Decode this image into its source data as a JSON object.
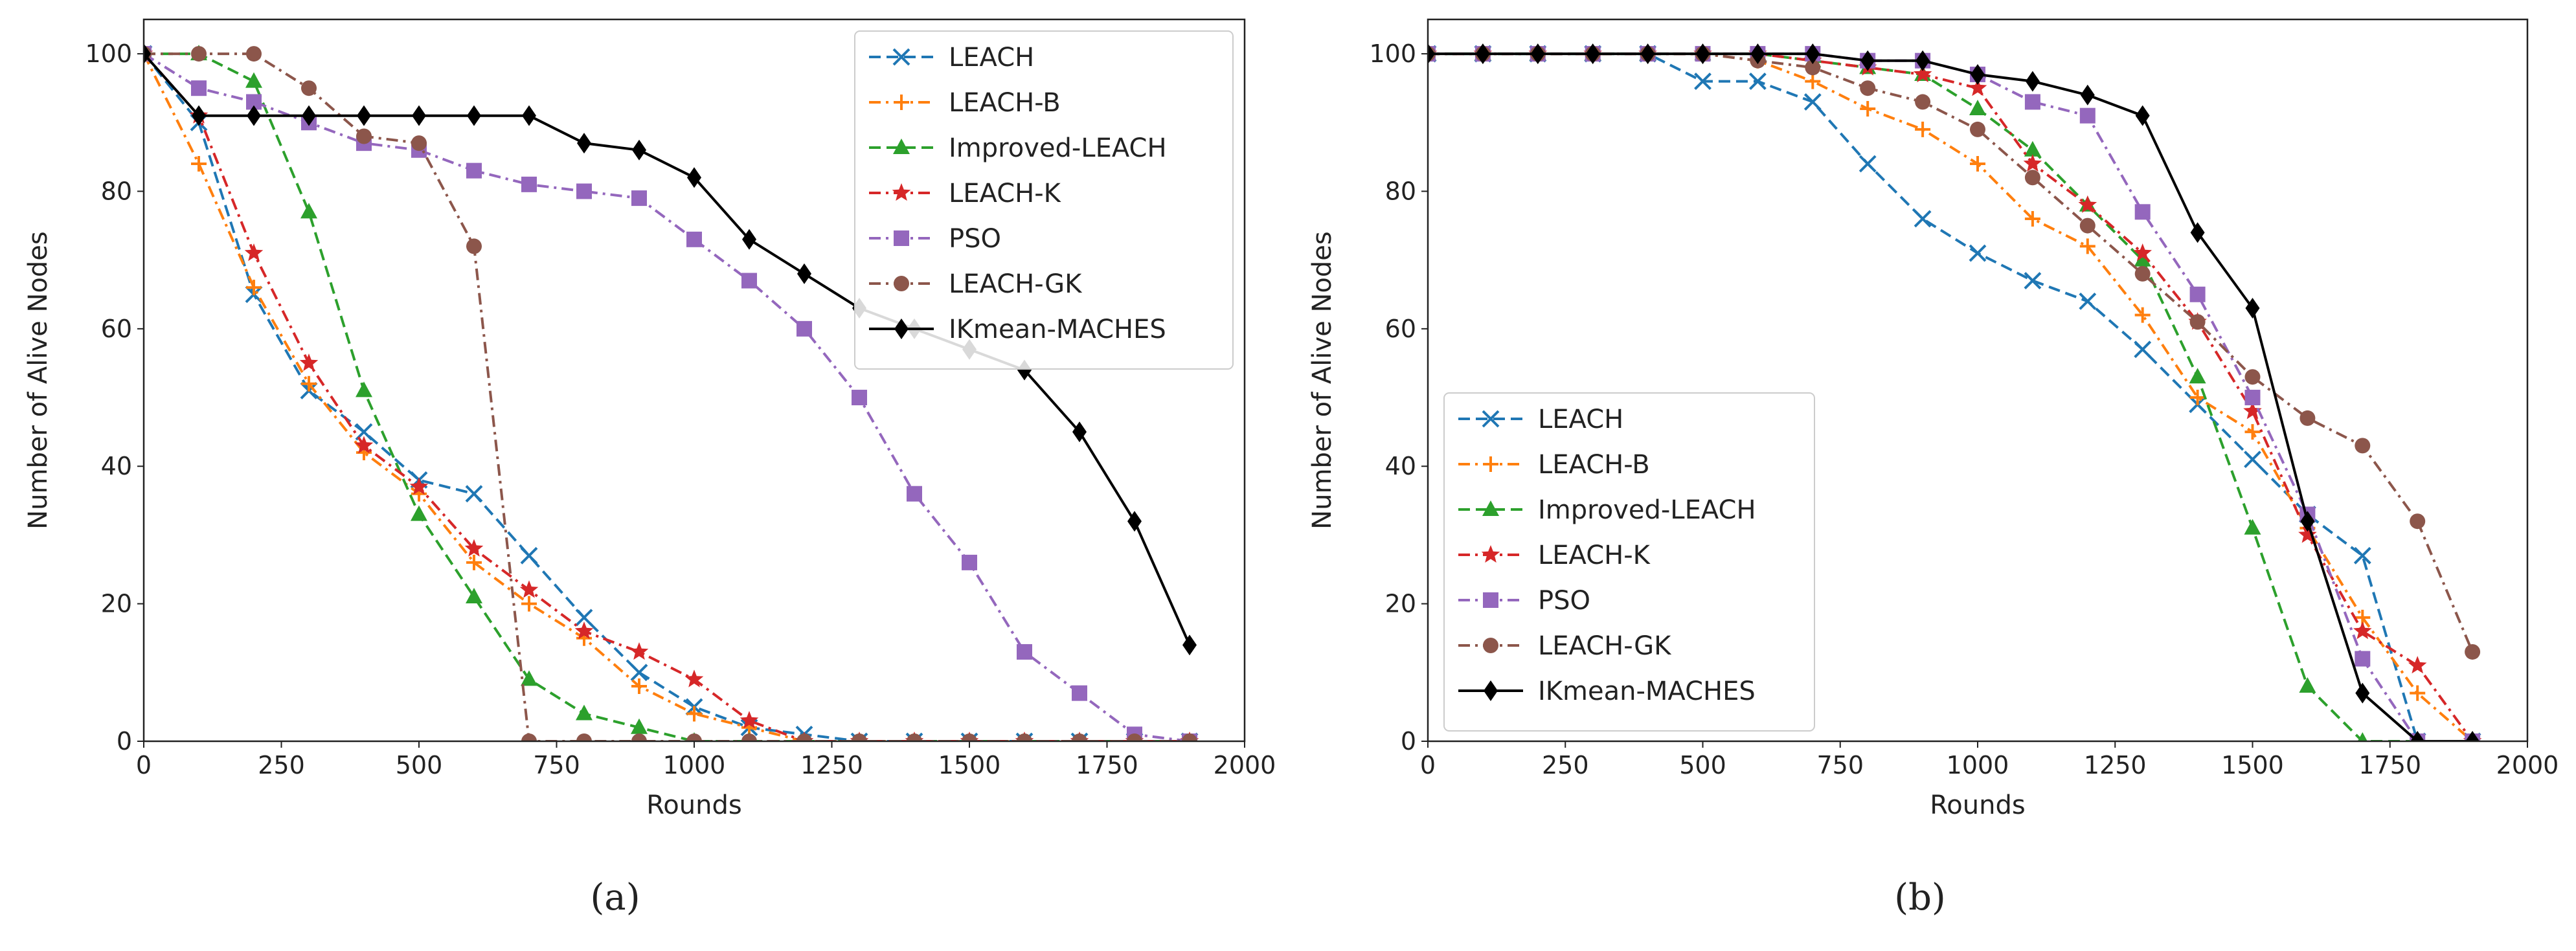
{
  "chart_data": [
    {
      "type": "line",
      "caption": "(a)",
      "xlabel": "Rounds",
      "ylabel": "Number of Alive Nodes",
      "xlim": [
        0,
        2000
      ],
      "ylim": [
        0,
        105
      ],
      "xticks": [
        0,
        250,
        500,
        750,
        1000,
        1250,
        1500,
        1750,
        2000
      ],
      "xtick_labels": [
        "0",
        "250",
        "500",
        "750",
        "1000",
        "1250",
        "1500",
        "1750",
        "2000"
      ],
      "yticks": [
        0,
        20,
        40,
        60,
        80,
        100
      ],
      "ytick_labels": [
        "0",
        "20",
        "40",
        "60",
        "80",
        "100"
      ],
      "grid": false,
      "legend_position": "top-right",
      "series": [
        {
          "name": "LEACH",
          "color": "#1f77b4",
          "dash": "dashed",
          "marker": "x",
          "x": [
            0,
            100,
            200,
            300,
            400,
            500,
            600,
            700,
            800,
            900,
            1000,
            1100,
            1200,
            1300,
            1400,
            1500,
            1600,
            1700,
            1800,
            1900
          ],
          "y": [
            100,
            90,
            65,
            51,
            45,
            38,
            36,
            27,
            18,
            10,
            5,
            2,
            1,
            0,
            0,
            0,
            0,
            0,
            0,
            0
          ]
        },
        {
          "name": "LEACH-B",
          "color": "#ff7f0e",
          "dash": "dashdot",
          "marker": "plus",
          "x": [
            0,
            100,
            200,
            300,
            400,
            500,
            600,
            700,
            800,
            900,
            1000,
            1100,
            1200,
            1300,
            1400,
            1500,
            1600,
            1700,
            1800,
            1900
          ],
          "y": [
            100,
            84,
            66,
            52,
            42,
            36,
            26,
            20,
            15,
            8,
            4,
            2,
            0,
            0,
            0,
            0,
            0,
            0,
            0,
            0
          ]
        },
        {
          "name": "Improved-LEACH",
          "color": "#2ca02c",
          "dash": "dashed",
          "marker": "triangle",
          "x": [
            0,
            100,
            200,
            300,
            400,
            500,
            600,
            700,
            800,
            900,
            1000,
            1100,
            1200,
            1300,
            1400,
            1500,
            1600,
            1700,
            1800,
            1900
          ],
          "y": [
            100,
            100,
            96,
            77,
            51,
            33,
            21,
            9,
            4,
            2,
            0,
            0,
            0,
            0,
            0,
            0,
            0,
            0,
            0,
            0
          ]
        },
        {
          "name": "LEACH-K",
          "color": "#d62728",
          "dash": "dashdot",
          "marker": "star",
          "x": [
            0,
            100,
            200,
            300,
            400,
            500,
            600,
            700,
            800,
            900,
            1000,
            1100,
            1200,
            1300,
            1400,
            1500,
            1600,
            1700,
            1800,
            1900
          ],
          "y": [
            100,
            91,
            71,
            55,
            43,
            37,
            28,
            22,
            16,
            13,
            9,
            3,
            0,
            0,
            0,
            0,
            0,
            0,
            0,
            0
          ]
        },
        {
          "name": "PSO",
          "color": "#9467bd",
          "dash": "dashdot",
          "marker": "square",
          "x": [
            0,
            100,
            200,
            300,
            400,
            500,
            600,
            700,
            800,
            900,
            1000,
            1100,
            1200,
            1300,
            1400,
            1500,
            1600,
            1700,
            1800,
            1900
          ],
          "y": [
            100,
            95,
            93,
            90,
            87,
            86,
            83,
            81,
            80,
            79,
            73,
            67,
            60,
            50,
            36,
            26,
            13,
            7,
            1,
            0
          ]
        },
        {
          "name": "LEACH-GK",
          "color": "#8c564b",
          "dash": "dashdot",
          "marker": "circle",
          "x": [
            0,
            100,
            200,
            300,
            400,
            500,
            600,
            700,
            800,
            900,
            1000,
            1100,
            1200,
            1300,
            1400,
            1500,
            1600,
            1700,
            1800,
            1900
          ],
          "y": [
            100,
            100,
            100,
            95,
            88,
            87,
            72,
            0,
            0,
            0,
            0,
            0,
            0,
            0,
            0,
            0,
            0,
            0,
            0,
            0
          ]
        },
        {
          "name": "IKmean-MACHES",
          "color": "#000000",
          "dash": "solid",
          "marker": "diamond",
          "x": [
            0,
            100,
            200,
            300,
            400,
            500,
            600,
            700,
            800,
            900,
            1000,
            1100,
            1200,
            1300,
            1400,
            1500,
            1600,
            1700,
            1800,
            1900
          ],
          "y": [
            100,
            91,
            91,
            91,
            91,
            91,
            91,
            91,
            87,
            86,
            82,
            73,
            68,
            63,
            60,
            57,
            54,
            45,
            32,
            14
          ]
        }
      ]
    },
    {
      "type": "line",
      "caption": "(b)",
      "xlabel": "Rounds",
      "ylabel": "Number of Alive Nodes",
      "xlim": [
        0,
        2000
      ],
      "ylim": [
        0,
        105
      ],
      "xticks": [
        0,
        250,
        500,
        750,
        1000,
        1250,
        1500,
        1750,
        2000
      ],
      "xtick_labels": [
        "0",
        "250",
        "500",
        "750",
        "1000",
        "1250",
        "1500",
        "1750",
        "2000"
      ],
      "yticks": [
        0,
        20,
        40,
        60,
        80,
        100
      ],
      "ytick_labels": [
        "0",
        "20",
        "40",
        "60",
        "80",
        "100"
      ],
      "grid": false,
      "legend_position": "bottom-left",
      "series": [
        {
          "name": "LEACH",
          "color": "#1f77b4",
          "dash": "dashed",
          "marker": "x",
          "x": [
            0,
            100,
            200,
            300,
            400,
            500,
            600,
            700,
            800,
            900,
            1000,
            1100,
            1200,
            1300,
            1400,
            1500,
            1600,
            1700,
            1800,
            1900
          ],
          "y": [
            100,
            100,
            100,
            100,
            100,
            96,
            96,
            93,
            84,
            76,
            71,
            67,
            64,
            57,
            49,
            41,
            33,
            27,
            0,
            0
          ]
        },
        {
          "name": "LEACH-B",
          "color": "#ff7f0e",
          "dash": "dashdot",
          "marker": "plus",
          "x": [
            0,
            100,
            200,
            300,
            400,
            500,
            600,
            700,
            800,
            900,
            1000,
            1100,
            1200,
            1300,
            1400,
            1500,
            1600,
            1700,
            1800,
            1900
          ],
          "y": [
            100,
            100,
            100,
            100,
            100,
            100,
            99,
            96,
            92,
            89,
            84,
            76,
            72,
            62,
            50,
            45,
            31,
            18,
            7,
            0
          ]
        },
        {
          "name": "Improved-LEACH",
          "color": "#2ca02c",
          "dash": "dashed",
          "marker": "triangle",
          "x": [
            0,
            100,
            200,
            300,
            400,
            500,
            600,
            700,
            800,
            900,
            1000,
            1100,
            1200,
            1300,
            1400,
            1500,
            1600,
            1700,
            1800,
            1900
          ],
          "y": [
            100,
            100,
            100,
            100,
            100,
            100,
            100,
            99,
            98,
            97,
            92,
            86,
            78,
            70,
            53,
            31,
            8,
            0,
            0,
            0
          ]
        },
        {
          "name": "LEACH-K",
          "color": "#d62728",
          "dash": "dashdot",
          "marker": "star",
          "x": [
            0,
            100,
            200,
            300,
            400,
            500,
            600,
            700,
            800,
            900,
            1000,
            1100,
            1200,
            1300,
            1400,
            1500,
            1600,
            1700,
            1800,
            1900
          ],
          "y": [
            100,
            100,
            100,
            100,
            100,
            100,
            100,
            99,
            98,
            97,
            95,
            84,
            78,
            71,
            61,
            48,
            30,
            16,
            11,
            0
          ]
        },
        {
          "name": "PSO",
          "color": "#9467bd",
          "dash": "dashdot",
          "marker": "square",
          "x": [
            0,
            100,
            200,
            300,
            400,
            500,
            600,
            700,
            800,
            900,
            1000,
            1100,
            1200,
            1300,
            1400,
            1500,
            1600,
            1700,
            1800,
            1900
          ],
          "y": [
            100,
            100,
            100,
            100,
            100,
            100,
            100,
            100,
            99,
            99,
            97,
            93,
            91,
            77,
            65,
            50,
            33,
            12,
            0,
            0
          ]
        },
        {
          "name": "LEACH-GK",
          "color": "#8c564b",
          "dash": "dashdot",
          "marker": "circle",
          "x": [
            0,
            100,
            200,
            300,
            400,
            500,
            600,
            700,
            800,
            900,
            1000,
            1100,
            1200,
            1300,
            1400,
            1500,
            1600,
            1700,
            1800,
            1900
          ],
          "y": [
            100,
            100,
            100,
            100,
            100,
            100,
            99,
            98,
            95,
            93,
            89,
            82,
            75,
            68,
            61,
            53,
            47,
            43,
            32,
            13
          ]
        },
        {
          "name": "IKmean-MACHES",
          "color": "#000000",
          "dash": "solid",
          "marker": "diamond",
          "x": [
            0,
            100,
            200,
            300,
            400,
            500,
            600,
            700,
            800,
            900,
            1000,
            1100,
            1200,
            1300,
            1400,
            1500,
            1600,
            1700,
            1800,
            1900
          ],
          "y": [
            100,
            100,
            100,
            100,
            100,
            100,
            100,
            100,
            99,
            99,
            97,
            96,
            94,
            91,
            74,
            63,
            32,
            7,
            0,
            0
          ]
        }
      ]
    }
  ]
}
